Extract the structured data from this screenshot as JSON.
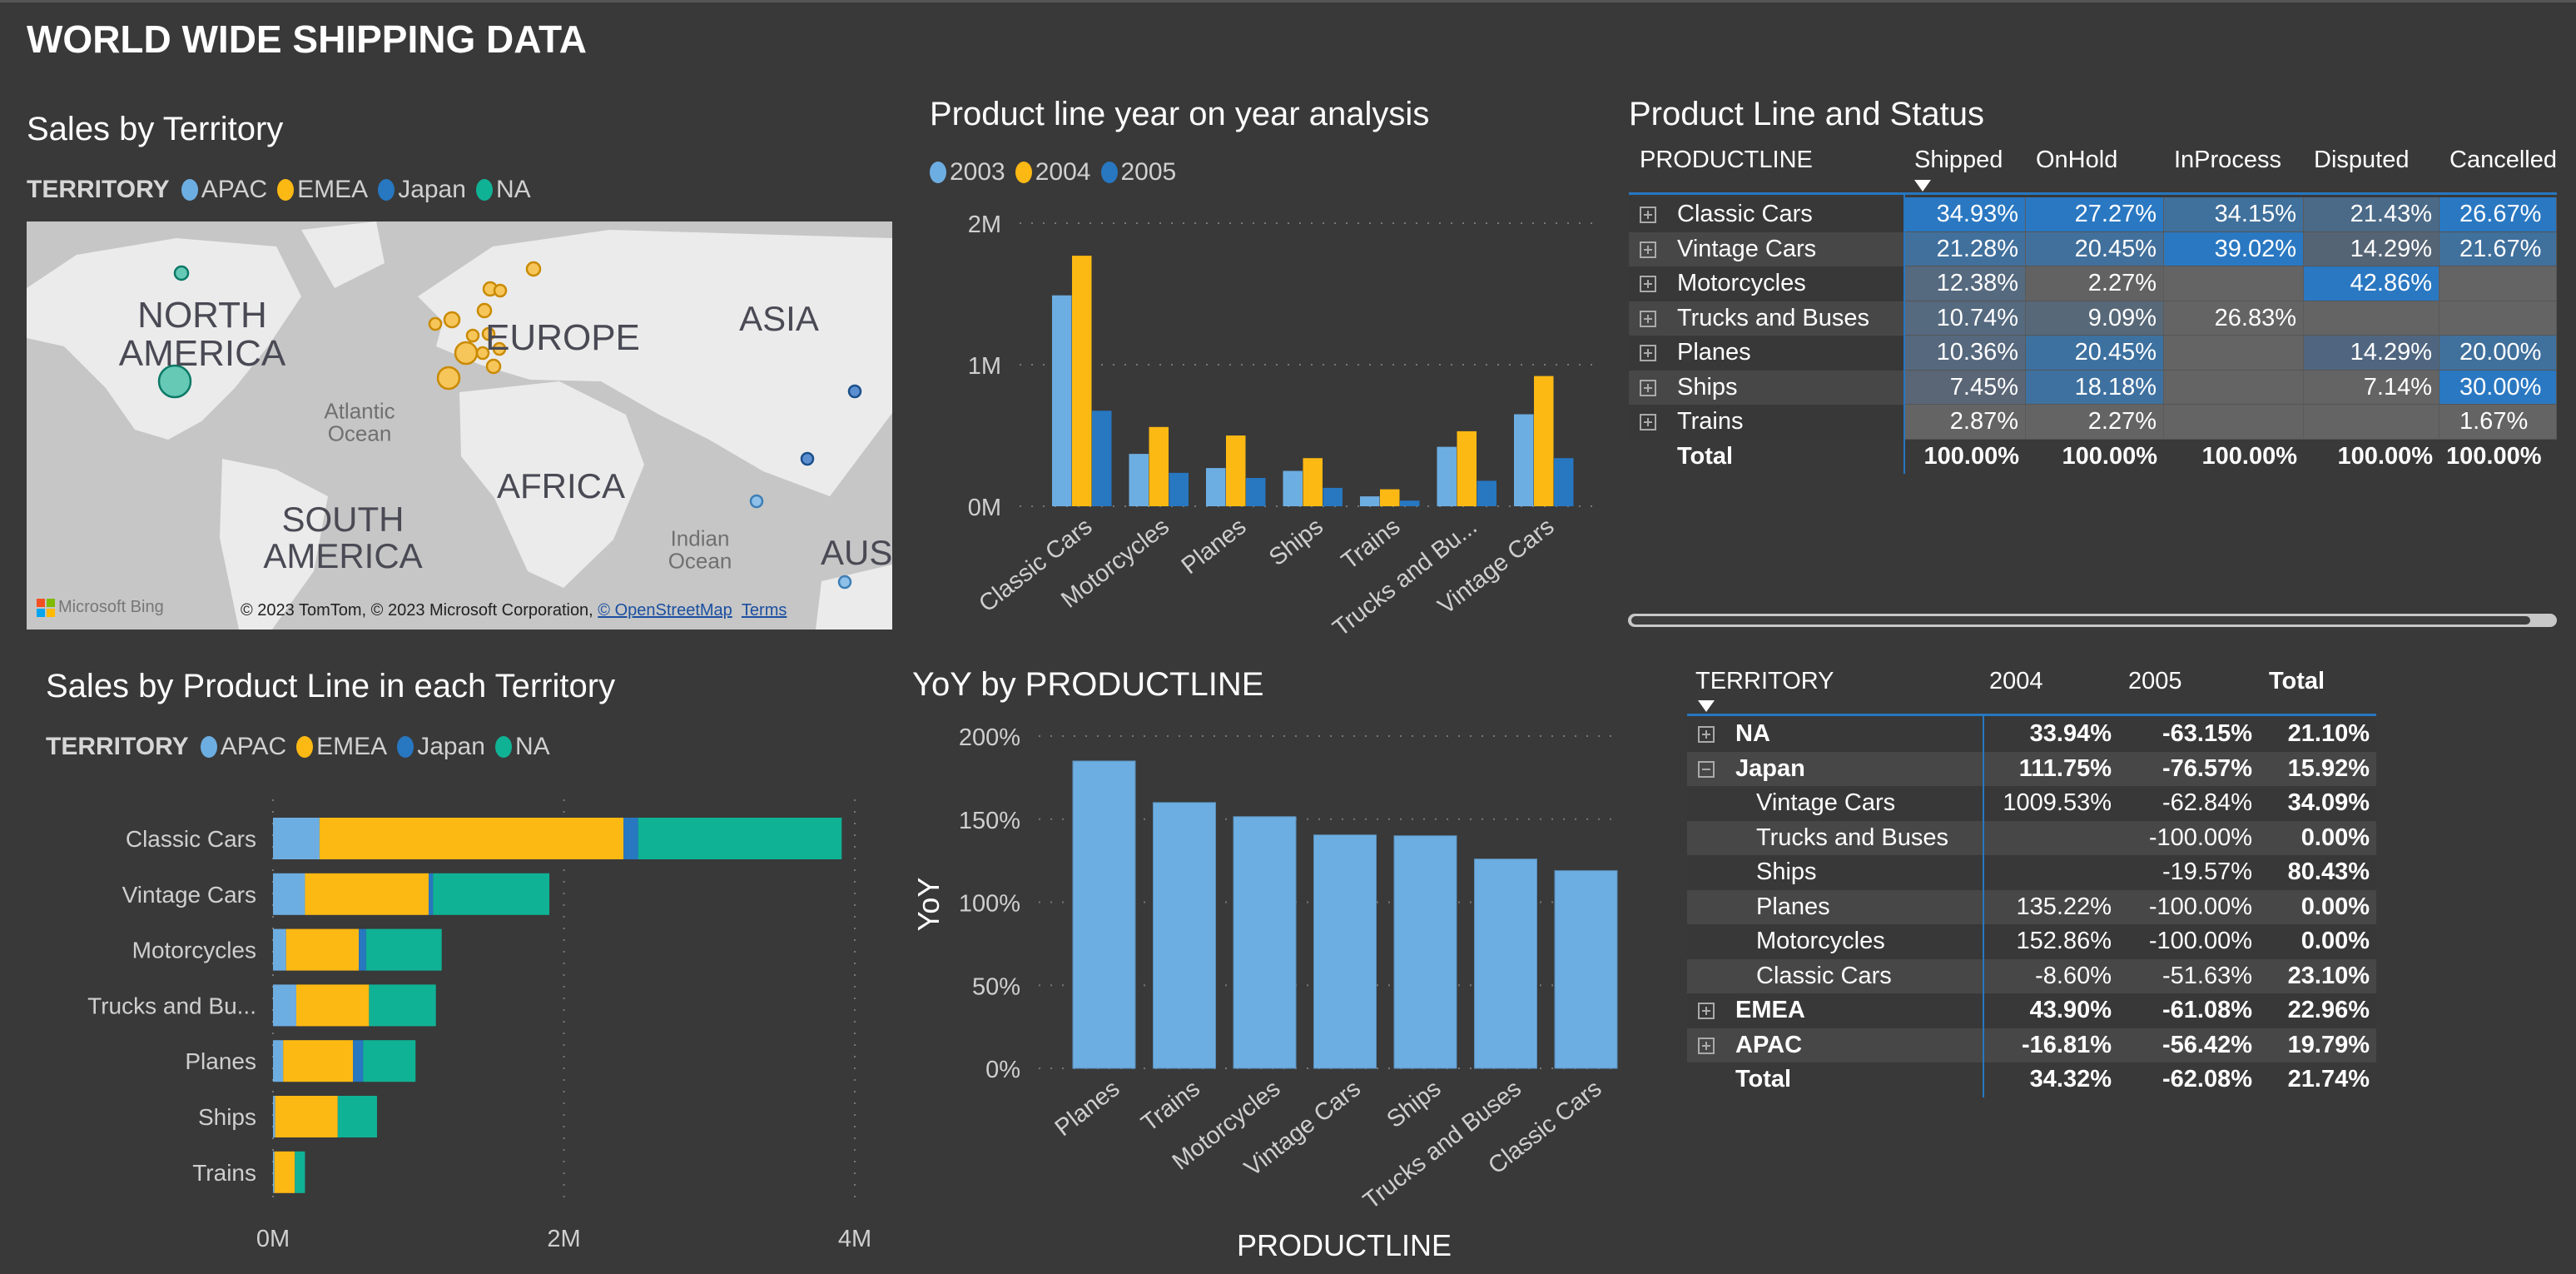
{
  "page_title": "WORLD WIDE SHIPPING DATA",
  "colors": {
    "apac": "#6daee2",
    "emea": "#fdb913",
    "japan": "#2777c1",
    "na": "#10b295",
    "y2003": "#6daee2",
    "y2004": "#fdb913",
    "y2005": "#2777c1",
    "background": "#393939",
    "accent_line": "#2777c1"
  },
  "map_panel": {
    "title": "Sales by Territory",
    "legend_title": "TERRITORY",
    "legend": [
      "APAC",
      "EMEA",
      "Japan",
      "NA"
    ],
    "labels": {
      "north_america": "NORTH AMERICA",
      "europe": "EUROPE",
      "asia": "ASIA",
      "atlantic": "Atlantic Ocean",
      "africa": "AFRICA",
      "south_america": "SOUTH AMERICA",
      "indian": "Indian Ocean",
      "australia": "AUST"
    },
    "bing_logo": "Microsoft Bing",
    "copyright": "© 2023 TomTom, © 2023 Microsoft Corporation, ",
    "osm_link": "© OpenStreetMap",
    "terms_link": "Terms"
  },
  "chart_data": [
    {
      "type": "bar",
      "title": "Product line year on year analysis",
      "categories": [
        "Classic Cars",
        "Motorcycles",
        "Planes",
        "Ships",
        "Trains",
        "Trucks and Bu...",
        "Vintage Cars"
      ],
      "series": [
        {
          "name": "2003",
          "values": [
            1.49,
            0.37,
            0.27,
            0.25,
            0.07,
            0.42,
            0.65
          ]
        },
        {
          "name": "2004",
          "values": [
            1.77,
            0.56,
            0.5,
            0.34,
            0.12,
            0.53,
            0.92
          ]
        },
        {
          "name": "2005",
          "values": [
            0.675,
            0.236,
            0.2,
            0.13,
            0.04,
            0.18,
            0.34
          ]
        }
      ],
      "unit": "M",
      "yticks": [
        "0M",
        "1M",
        "2M"
      ],
      "ylim": [
        0,
        2.1
      ],
      "grid": true,
      "legend_placement": "top-left"
    },
    {
      "type": "bar",
      "orientation": "horizontal-stacked",
      "title": "Sales by Product Line in each Territory",
      "legend_title": "TERRITORY",
      "categories": [
        "Classic Cars",
        "Vintage Cars",
        "Motorcycles",
        "Trucks and Bu...",
        "Planes",
        "Ships",
        "Trains"
      ],
      "series": [
        {
          "name": "APAC",
          "values": [
            0.32,
            0.22,
            0.09,
            0.16,
            0.07,
            0.015,
            0.01
          ]
        },
        {
          "name": "EMEA",
          "values": [
            2.09,
            0.85,
            0.5,
            0.5,
            0.48,
            0.43,
            0.14
          ]
        },
        {
          "name": "Japan",
          "values": [
            0.1,
            0.03,
            0.05,
            0.0,
            0.07,
            0.0,
            0.0
          ]
        },
        {
          "name": "NA",
          "values": [
            1.4,
            0.8,
            0.52,
            0.46,
            0.36,
            0.27,
            0.07
          ]
        }
      ],
      "unit": "M",
      "xticks": [
        "0M",
        "2M",
        "4M"
      ],
      "xlim": [
        0,
        4
      ],
      "grid": true,
      "legend_placement": "top-left"
    },
    {
      "type": "bar",
      "title": "YoY by PRODUCTLINE",
      "categories": [
        "Planes",
        "Trains",
        "Motorcycles",
        "Vintage Cars",
        "Ships",
        "Trucks and Buses",
        "Classic Cars"
      ],
      "values": [
        185,
        160,
        151.5,
        140.5,
        140,
        126,
        119
      ],
      "xlabel": "PRODUCTLINE",
      "ylabel": "YoY",
      "yticks": [
        "0%",
        "50%",
        "100%",
        "150%",
        "200%"
      ],
      "ylim": [
        0,
        200
      ],
      "grid": true
    }
  ],
  "matrix_status": {
    "title": "Product Line and Status",
    "headers": [
      "PRODUCTLINE",
      "Shipped",
      "OnHold",
      "InProcess",
      "Disputed",
      "Cancelled"
    ],
    "rows": [
      {
        "label": "Classic Cars",
        "values": [
          "34.93%",
          "27.27%",
          "34.15%",
          "21.43%",
          "26.67%"
        ],
        "colors": [
          "#2a78c2",
          "#2a78c2",
          "#40709c",
          "#4b6a88",
          "#2a78c2"
        ]
      },
      {
        "label": "Vintage Cars",
        "values": [
          "21.28%",
          "20.45%",
          "39.02%",
          "14.29%",
          "21.67%"
        ],
        "colors": [
          "#41709c",
          "#42709c",
          "#2a78c2",
          "#556475",
          "#40709c"
        ]
      },
      {
        "label": "Motorcycles",
        "values": [
          "12.38%",
          "2.27%",
          "",
          "42.86%",
          ""
        ],
        "colors": [
          "#55697f",
          "#626262",
          "#646464",
          "#2a78c2",
          "#646464"
        ]
      },
      {
        "label": "Trucks and Buses",
        "values": [
          "10.74%",
          "9.09%",
          "26.83%",
          "",
          ""
        ],
        "colors": [
          "#55697f",
          "#576878",
          "#646464",
          "#646464",
          "#646464"
        ]
      },
      {
        "label": "Planes",
        "values": [
          "10.36%",
          "20.45%",
          "",
          "14.29%",
          "20.00%"
        ],
        "colors": [
          "#56687d",
          "#3d71a0",
          "#646464",
          "#506680",
          "#40709c"
        ]
      },
      {
        "label": "Ships",
        "values": [
          "7.45%",
          "18.18%",
          "",
          "7.14%",
          "30.00%"
        ],
        "colors": [
          "#5a6676",
          "#3f71a0",
          "#646464",
          "#646464",
          "#2a78c2"
        ]
      },
      {
        "label": "Trains",
        "values": [
          "2.87%",
          "2.27%",
          "",
          "",
          "1.67%"
        ],
        "colors": [
          "#646464",
          "#646464",
          "#646464",
          "#646464",
          "#646464"
        ]
      }
    ],
    "total": {
      "label": "Total",
      "values": [
        "100.00%",
        "100.00%",
        "100.00%",
        "100.00%",
        "100.00%"
      ]
    }
  },
  "matrix_territory": {
    "headers": [
      "TERRITORY",
      "2004",
      "2005",
      "Total"
    ],
    "rows": [
      {
        "label": "NA",
        "level": 0,
        "expand": "plus",
        "values": [
          "33.94%",
          "-63.15%",
          "21.10%"
        ]
      },
      {
        "label": "Japan",
        "level": 0,
        "expand": "minus",
        "values": [
          "111.75%",
          "-76.57%",
          "15.92%"
        ]
      },
      {
        "label": "Vintage Cars",
        "level": 1,
        "values": [
          "1009.53%",
          "-62.84%",
          "34.09%"
        ]
      },
      {
        "label": "Trucks and Buses",
        "level": 1,
        "values": [
          "",
          "-100.00%",
          "0.00%"
        ]
      },
      {
        "label": "Ships",
        "level": 1,
        "values": [
          "",
          "-19.57%",
          "80.43%"
        ]
      },
      {
        "label": "Planes",
        "level": 1,
        "values": [
          "135.22%",
          "-100.00%",
          "0.00%"
        ]
      },
      {
        "label": "Motorcycles",
        "level": 1,
        "values": [
          "152.86%",
          "-100.00%",
          "0.00%"
        ]
      },
      {
        "label": "Classic Cars",
        "level": 1,
        "values": [
          "-8.60%",
          "-51.63%",
          "23.10%"
        ]
      },
      {
        "label": "EMEA",
        "level": 0,
        "expand": "plus",
        "values": [
          "43.90%",
          "-61.08%",
          "22.96%"
        ]
      },
      {
        "label": "APAC",
        "level": 0,
        "expand": "plus",
        "values": [
          "-16.81%",
          "-56.42%",
          "19.79%"
        ]
      }
    ],
    "total": {
      "label": "Total",
      "values": [
        "34.32%",
        "-62.08%",
        "21.74%"
      ]
    }
  }
}
